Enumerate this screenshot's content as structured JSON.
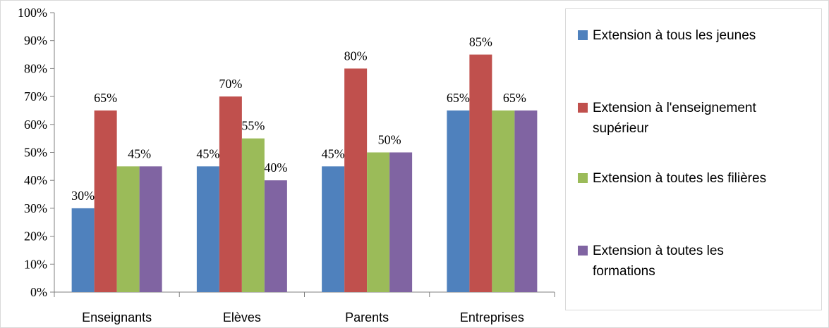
{
  "chart_data": {
    "type": "bar",
    "categories": [
      "Enseignants",
      "Elèves",
      "Parents",
      "Entreprises"
    ],
    "series": [
      {
        "name": "Extension à tous les jeunes",
        "color": "#4f81bd",
        "values": [
          30,
          45,
          45,
          65
        ]
      },
      {
        "name": "Extension à l'enseignement supérieur",
        "color": "#c0504d",
        "values": [
          65,
          70,
          80,
          85
        ]
      },
      {
        "name": "Extension à toutes les filières",
        "color": "#9bbb59",
        "values": [
          45,
          55,
          50,
          65
        ]
      },
      {
        "name": "Extension à toutes les formations",
        "color": "#8064a2",
        "values": [
          45,
          40,
          50,
          65
        ]
      }
    ],
    "data_labels": [
      [
        "30%",
        "65%",
        "45%",
        ""
      ],
      [
        "45%",
        "70%",
        "55%",
        "40%"
      ],
      [
        "45%",
        "80%",
        "50%",
        ""
      ],
      [
        "65%",
        "85%",
        "65%",
        ""
      ]
    ],
    "ylim": [
      0,
      100
    ],
    "yticks": [
      0,
      10,
      20,
      30,
      40,
      50,
      60,
      70,
      80,
      90,
      100
    ],
    "ytick_labels": [
      "0%",
      "10%",
      "20%",
      "30%",
      "40%",
      "50%",
      "60%",
      "70%",
      "80%",
      "90%",
      "100%"
    ],
    "title": "",
    "xlabel": "",
    "ylabel": "",
    "grid": false,
    "legend": {
      "position": "right",
      "entries": [
        {
          "lines": [
            "Extension à tous les jeunes"
          ]
        },
        {
          "lines": [
            "Extension à l'enseignement",
            "supérieur"
          ]
        },
        {
          "lines": [
            "Extension à toutes les filières"
          ]
        },
        {
          "lines": [
            "Extension à toutes les",
            "formations"
          ]
        }
      ]
    }
  }
}
